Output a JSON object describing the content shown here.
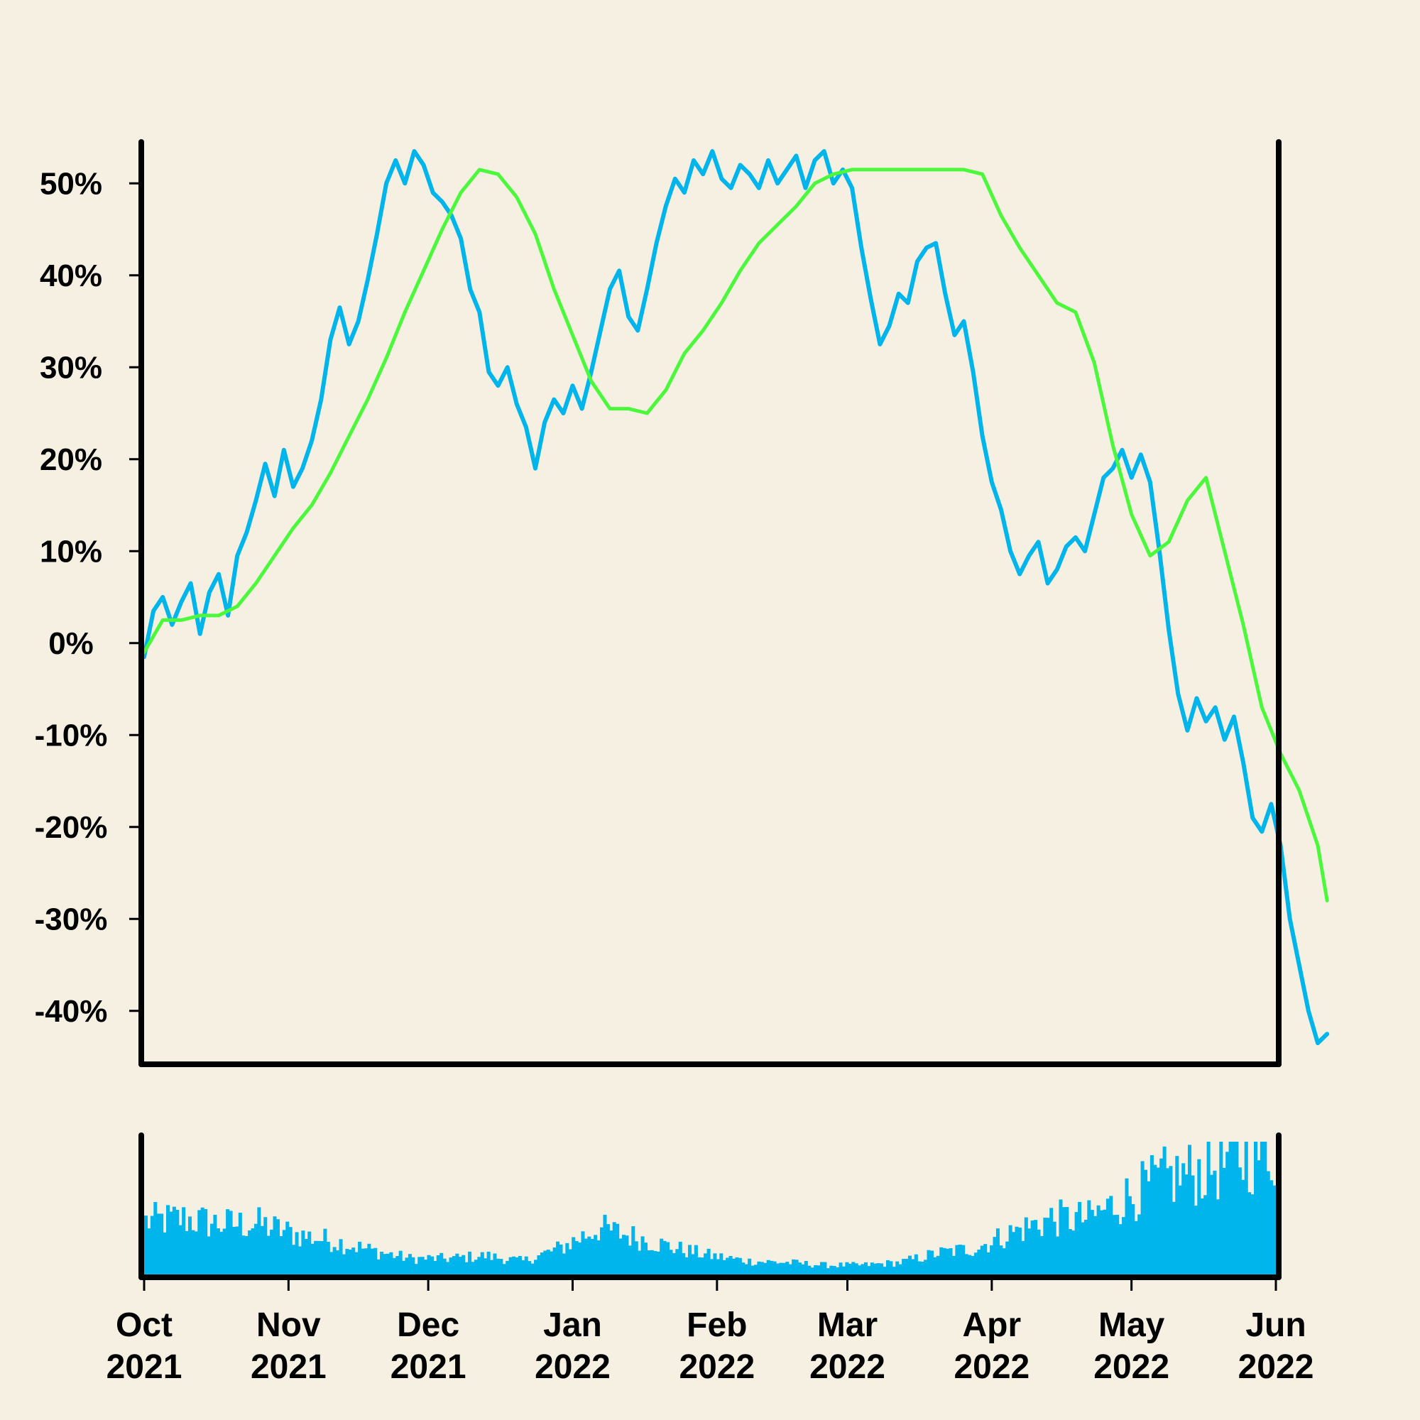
{
  "chart_data": {
    "type": "line",
    "title": "",
    "xlabel": "",
    "ylabel": "",
    "x_ticks": [
      {
        "date": "2021-10-01",
        "month": "Oct",
        "year": "2021"
      },
      {
        "date": "2021-11-01",
        "month": "Nov",
        "year": "2021"
      },
      {
        "date": "2021-12-01",
        "month": "Dec",
        "year": "2021"
      },
      {
        "date": "2022-01-01",
        "month": "Jan",
        "year": "2022"
      },
      {
        "date": "2022-02-01",
        "month": "Feb",
        "year": "2022"
      },
      {
        "date": "2022-03-01",
        "month": "Mar",
        "year": "2022"
      },
      {
        "date": "2022-04-01",
        "month": "Apr",
        "year": "2022"
      },
      {
        "date": "2022-05-01",
        "month": "May",
        "year": "2022"
      },
      {
        "date": "2022-06-01",
        "month": "Jun",
        "year": "2022"
      }
    ],
    "y_ticks": [
      {
        "value": 50,
        "label": "50%"
      },
      {
        "value": 40,
        "label": "40%"
      },
      {
        "value": 30,
        "label": "30%"
      },
      {
        "value": 20,
        "label": "20%"
      },
      {
        "value": 10,
        "label": "10%"
      },
      {
        "value": 0,
        "label": "0%"
      },
      {
        "value": -10,
        "label": "-10%"
      },
      {
        "value": -20,
        "label": "-20%"
      },
      {
        "value": -30,
        "label": "-30%"
      },
      {
        "value": -40,
        "label": "-40%"
      }
    ],
    "xlim": [
      "2021-10-01",
      "2022-06-01"
    ],
    "ylim": [
      -45.5,
      54.5
    ],
    "grid": false,
    "colors": {
      "background": "#f5f0e1",
      "price": "#00b4ec",
      "moving_average": "#4cf83c",
      "volume": "#00b4ec",
      "axes": "#000000"
    },
    "series": [
      {
        "key": "price",
        "style": "jagged line",
        "points": [
          [
            "2021-10-01",
            -1.5
          ],
          [
            "2021-10-03",
            3.5
          ],
          [
            "2021-10-05",
            5
          ],
          [
            "2021-10-07",
            2
          ],
          [
            "2021-10-09",
            4.5
          ],
          [
            "2021-10-11",
            6.5
          ],
          [
            "2021-10-13",
            1
          ],
          [
            "2021-10-15",
            5.5
          ],
          [
            "2021-10-17",
            7.5
          ],
          [
            "2021-10-19",
            3
          ],
          [
            "2021-10-21",
            9.5
          ],
          [
            "2021-10-23",
            12
          ],
          [
            "2021-10-25",
            15.5
          ],
          [
            "2021-10-27",
            19.5
          ],
          [
            "2021-10-29",
            16
          ],
          [
            "2021-10-31",
            21
          ],
          [
            "2021-11-02",
            17
          ],
          [
            "2021-11-04",
            19
          ],
          [
            "2021-11-06",
            22
          ],
          [
            "2021-11-08",
            26.5
          ],
          [
            "2021-11-10",
            33
          ],
          [
            "2021-11-12",
            36.5
          ],
          [
            "2021-11-14",
            32.5
          ],
          [
            "2021-11-16",
            35
          ],
          [
            "2021-11-18",
            39.5
          ],
          [
            "2021-11-20",
            44.5
          ],
          [
            "2021-11-22",
            50
          ],
          [
            "2021-11-24",
            52.5
          ],
          [
            "2021-11-26",
            50
          ],
          [
            "2021-11-28",
            53.5
          ],
          [
            "2021-11-30",
            52
          ],
          [
            "2021-12-02",
            49
          ],
          [
            "2021-12-04",
            48
          ],
          [
            "2021-12-06",
            46.5
          ],
          [
            "2021-12-08",
            44
          ],
          [
            "2021-12-10",
            38.5
          ],
          [
            "2021-12-12",
            36
          ],
          [
            "2021-12-14",
            29.5
          ],
          [
            "2021-12-16",
            28
          ],
          [
            "2021-12-18",
            30
          ],
          [
            "2021-12-20",
            26
          ],
          [
            "2021-12-22",
            23.5
          ],
          [
            "2021-12-24",
            19
          ],
          [
            "2021-12-26",
            24
          ],
          [
            "2021-12-28",
            26.5
          ],
          [
            "2021-12-30",
            25
          ],
          [
            "2022-01-01",
            28
          ],
          [
            "2022-01-03",
            25.5
          ],
          [
            "2022-01-05",
            29.5
          ],
          [
            "2022-01-07",
            34
          ],
          [
            "2022-01-09",
            38.5
          ],
          [
            "2022-01-11",
            40.5
          ],
          [
            "2022-01-13",
            35.5
          ],
          [
            "2022-01-15",
            34
          ],
          [
            "2022-01-17",
            38.5
          ],
          [
            "2022-01-19",
            43.5
          ],
          [
            "2022-01-21",
            47.5
          ],
          [
            "2022-01-23",
            50.5
          ],
          [
            "2022-01-25",
            49
          ],
          [
            "2022-01-27",
            52.5
          ],
          [
            "2022-01-29",
            51
          ],
          [
            "2022-01-31",
            53.5
          ],
          [
            "2022-02-02",
            50.5
          ],
          [
            "2022-02-04",
            49.5
          ],
          [
            "2022-02-06",
            52
          ],
          [
            "2022-02-08",
            51
          ],
          [
            "2022-02-10",
            49.5
          ],
          [
            "2022-02-12",
            52.5
          ],
          [
            "2022-02-14",
            50
          ],
          [
            "2022-02-16",
            51.5
          ],
          [
            "2022-02-18",
            53
          ],
          [
            "2022-02-20",
            49.5
          ],
          [
            "2022-02-22",
            52.5
          ],
          [
            "2022-02-24",
            53.5
          ],
          [
            "2022-02-26",
            50
          ],
          [
            "2022-02-28",
            51.5
          ],
          [
            "2022-03-02",
            49.5
          ],
          [
            "2022-03-04",
            43
          ],
          [
            "2022-03-06",
            37.5
          ],
          [
            "2022-03-08",
            32.5
          ],
          [
            "2022-03-10",
            34.5
          ],
          [
            "2022-03-12",
            38
          ],
          [
            "2022-03-14",
            37
          ],
          [
            "2022-03-16",
            41.5
          ],
          [
            "2022-03-18",
            43
          ],
          [
            "2022-03-20",
            43.5
          ],
          [
            "2022-03-22",
            38
          ],
          [
            "2022-03-24",
            33.5
          ],
          [
            "2022-03-26",
            35
          ],
          [
            "2022-03-28",
            29.5
          ],
          [
            "2022-03-30",
            22.5
          ],
          [
            "2022-04-01",
            17.5
          ],
          [
            "2022-04-03",
            14.5
          ],
          [
            "2022-04-05",
            10
          ],
          [
            "2022-04-07",
            7.5
          ],
          [
            "2022-04-09",
            9.5
          ],
          [
            "2022-04-11",
            11
          ],
          [
            "2022-04-13",
            6.5
          ],
          [
            "2022-04-15",
            8
          ],
          [
            "2022-04-17",
            10.5
          ],
          [
            "2022-04-19",
            11.5
          ],
          [
            "2022-04-21",
            10
          ],
          [
            "2022-04-23",
            14
          ],
          [
            "2022-04-25",
            18
          ],
          [
            "2022-04-27",
            19
          ],
          [
            "2022-04-29",
            21
          ],
          [
            "2022-05-01",
            18
          ],
          [
            "2022-05-03",
            20.5
          ],
          [
            "2022-05-05",
            17.5
          ],
          [
            "2022-05-07",
            10
          ],
          [
            "2022-05-09",
            1.5
          ],
          [
            "2022-05-11",
            -5.5
          ],
          [
            "2022-05-13",
            -9.5
          ],
          [
            "2022-05-15",
            -6
          ],
          [
            "2022-05-17",
            -8.5
          ],
          [
            "2022-05-19",
            -7
          ],
          [
            "2022-05-21",
            -10.5
          ],
          [
            "2022-05-23",
            -8
          ],
          [
            "2022-05-25",
            -13
          ],
          [
            "2022-05-27",
            -19
          ],
          [
            "2022-05-29",
            -20.5
          ],
          [
            "2022-05-31",
            -17.5
          ],
          [
            "2022-06-02",
            -22
          ],
          [
            "2022-06-04",
            -30
          ],
          [
            "2022-06-06",
            -35
          ],
          [
            "2022-06-08",
            -40
          ],
          [
            "2022-06-10",
            -43.5
          ],
          [
            "2022-06-12",
            -42.5
          ]
        ]
      },
      {
        "key": "moving_average",
        "style": "smooth line",
        "points": [
          [
            "2021-10-01",
            -1
          ],
          [
            "2021-10-05",
            2.5
          ],
          [
            "2021-10-09",
            2.5
          ],
          [
            "2021-10-13",
            3
          ],
          [
            "2021-10-17",
            3
          ],
          [
            "2021-10-21",
            4
          ],
          [
            "2021-10-25",
            6.5
          ],
          [
            "2021-10-29",
            9.5
          ],
          [
            "2021-11-02",
            12.5
          ],
          [
            "2021-11-06",
            15
          ],
          [
            "2021-11-10",
            18.5
          ],
          [
            "2021-11-14",
            22.5
          ],
          [
            "2021-11-18",
            26.5
          ],
          [
            "2021-11-22",
            31
          ],
          [
            "2021-11-26",
            36
          ],
          [
            "2021-11-30",
            40.5
          ],
          [
            "2021-12-04",
            45
          ],
          [
            "2021-12-08",
            49
          ],
          [
            "2021-12-12",
            51.5
          ],
          [
            "2021-12-16",
            51
          ],
          [
            "2021-12-20",
            48.5
          ],
          [
            "2021-12-24",
            44.5
          ],
          [
            "2021-12-28",
            38.5
          ],
          [
            "2022-01-01",
            33.5
          ],
          [
            "2022-01-05",
            28.5
          ],
          [
            "2022-01-09",
            25.5
          ],
          [
            "2022-01-13",
            25.5
          ],
          [
            "2022-01-17",
            25
          ],
          [
            "2022-01-21",
            27.5
          ],
          [
            "2022-01-25",
            31.5
          ],
          [
            "2022-01-29",
            34
          ],
          [
            "2022-02-02",
            37
          ],
          [
            "2022-02-06",
            40.5
          ],
          [
            "2022-02-10",
            43.5
          ],
          [
            "2022-02-14",
            45.5
          ],
          [
            "2022-02-18",
            47.5
          ],
          [
            "2022-02-22",
            50
          ],
          [
            "2022-02-26",
            51
          ],
          [
            "2022-03-02",
            51.5
          ],
          [
            "2022-03-06",
            51.5
          ],
          [
            "2022-03-10",
            51.5
          ],
          [
            "2022-03-14",
            51.5
          ],
          [
            "2022-03-18",
            51.5
          ],
          [
            "2022-03-22",
            51.5
          ],
          [
            "2022-03-26",
            51.5
          ],
          [
            "2022-03-30",
            51
          ],
          [
            "2022-04-03",
            46.5
          ],
          [
            "2022-04-07",
            43
          ],
          [
            "2022-04-11",
            40
          ],
          [
            "2022-04-15",
            37
          ],
          [
            "2022-04-19",
            36
          ],
          [
            "2022-04-23",
            30.5
          ],
          [
            "2022-04-27",
            21.5
          ],
          [
            "2022-05-01",
            14
          ],
          [
            "2022-05-05",
            9.5
          ],
          [
            "2022-05-09",
            11
          ],
          [
            "2022-05-13",
            15.5
          ],
          [
            "2022-05-17",
            18
          ],
          [
            "2022-05-21",
            10
          ],
          [
            "2022-05-25",
            2
          ],
          [
            "2022-05-29",
            -7
          ],
          [
            "2022-06-02",
            -12
          ],
          [
            "2022-06-06",
            -16
          ],
          [
            "2022-06-10",
            -22
          ],
          [
            "2022-06-12",
            -28
          ]
        ]
      }
    ],
    "volume": {
      "type": "bar",
      "bins_per_segment": 12,
      "levels": [
        0.4,
        0.42,
        0.38,
        0.38,
        0.3,
        0.25,
        0.18,
        0.12,
        0.12,
        0.14,
        0.1,
        0.2,
        0.35,
        0.28,
        0.2,
        0.14,
        0.1,
        0.09,
        0.07,
        0.07,
        0.09,
        0.16,
        0.2,
        0.32,
        0.42,
        0.42,
        0.58,
        0.72,
        0.78,
        0.88,
        0.95
      ]
    }
  }
}
